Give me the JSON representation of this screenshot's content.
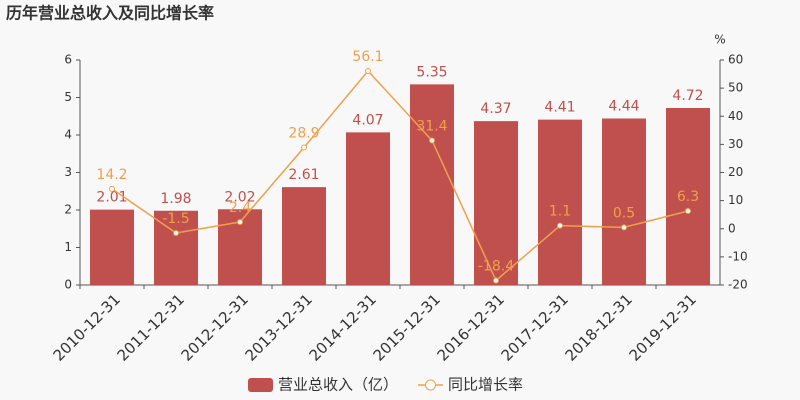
{
  "chart_data": {
    "type": "combo",
    "title": "历年营业总收入及同比增长率",
    "categories": [
      "2010-12-31",
      "2011-12-31",
      "2012-12-31",
      "2013-12-31",
      "2014-12-31",
      "2015-12-31",
      "2016-12-31",
      "2017-12-31",
      "2018-12-31",
      "2019-12-31"
    ],
    "series": [
      {
        "name": "营业总收入（亿）",
        "type": "bar",
        "color": "#c0504d",
        "values": [
          2.01,
          1.98,
          2.02,
          2.61,
          4.07,
          5.35,
          4.37,
          4.41,
          4.44,
          4.72
        ]
      },
      {
        "name": "同比增长率",
        "type": "line",
        "axis": "y2",
        "color": "#f0a04b",
        "values": [
          14.2,
          -1.5,
          2.4,
          28.9,
          56.1,
          31.4,
          -18.4,
          1.1,
          0.5,
          6.3
        ]
      }
    ],
    "ylim": [
      0,
      6
    ],
    "yticks": [
      0,
      1,
      2,
      3,
      4,
      5,
      6
    ],
    "y2lim": [
      -20,
      60
    ],
    "y2ticks": [
      -20,
      -10,
      0,
      10,
      20,
      30,
      40,
      50,
      60
    ],
    "y2label": "%",
    "grid": false,
    "legend": "bottom"
  }
}
